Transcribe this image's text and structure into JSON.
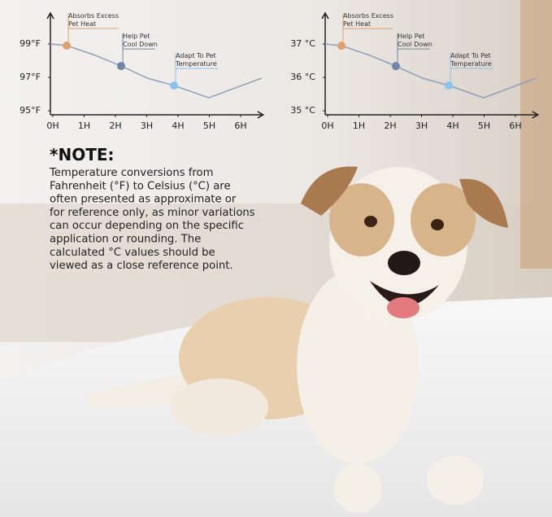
{
  "chart_data": [
    {
      "type": "line",
      "x": [
        0,
        0.52,
        1.43,
        2.26,
        3.1,
        3.95,
        5.06,
        6.75
      ],
      "series": [
        {
          "color": "#8fa3bb",
          "values": [
            99,
            98.9,
            98.32,
            97.68,
            96.95,
            96.51,
            95.78,
            96.95
          ]
        }
      ],
      "xlim": [
        0,
        6.8
      ],
      "ylim": [
        94.76,
        100.85
      ],
      "xticks": [
        {
          "value": 0,
          "label": "0H"
        },
        {
          "value": 1,
          "label": "1H"
        },
        {
          "value": 2,
          "label": "2H"
        },
        {
          "value": 3,
          "label": "3H"
        },
        {
          "value": 4,
          "label": "4H"
        },
        {
          "value": 5,
          "label": "5H"
        },
        {
          "value": 6,
          "label": "6H"
        }
      ],
      "yticks": [
        {
          "value": 95,
          "label": "95°F"
        },
        {
          "value": 97,
          "label": "97°F"
        },
        {
          "value": 99,
          "label": "99°F"
        }
      ],
      "annotations": [
        {
          "x": 0.52,
          "y": 98.9,
          "color": "#e0a070",
          "lines": [
            "Absorbs Excess",
            "Pet Heat"
          ]
        },
        {
          "x": 2.26,
          "y": 97.68,
          "color": "#6f86a8",
          "lines": [
            "Help Pet",
            "Cool Down"
          ]
        },
        {
          "x": 3.95,
          "y": 96.51,
          "color": "#8ec3ee",
          "lines": [
            "Adapt To Pet",
            "Temperature"
          ]
        }
      ]
    },
    {
      "type": "line",
      "x": [
        0,
        0.52,
        1.43,
        2.26,
        3.1,
        3.95,
        5.06,
        6.75
      ],
      "series": [
        {
          "color": "#8fa3bb",
          "values": [
            37,
            36.95,
            36.66,
            36.34,
            35.98,
            35.76,
            35.39,
            35.98
          ]
        }
      ],
      "xlim": [
        0,
        6.8
      ],
      "ylim": [
        34.88,
        37.93
      ],
      "xticks": [
        {
          "value": 0,
          "label": "0H"
        },
        {
          "value": 1,
          "label": "1H"
        },
        {
          "value": 2,
          "label": "2H"
        },
        {
          "value": 3,
          "label": "3H"
        },
        {
          "value": 4,
          "label": "4H"
        },
        {
          "value": 5,
          "label": "5H"
        },
        {
          "value": 6,
          "label": "6H"
        }
      ],
      "yticks": [
        {
          "value": 35,
          "label": "35 °C"
        },
        {
          "value": 36,
          "label": "36 °C"
        },
        {
          "value": 37,
          "label": "37 °C"
        }
      ],
      "annotations": [
        {
          "x": 0.52,
          "y": 36.95,
          "color": "#e0a070",
          "lines": [
            "Absorbs Excess",
            "Pet Heat"
          ]
        },
        {
          "x": 2.26,
          "y": 36.34,
          "color": "#6f86a8",
          "lines": [
            "Help Pet",
            "Cool Down"
          ]
        },
        {
          "x": 3.95,
          "y": 35.76,
          "color": "#8ec3ee",
          "lines": [
            "Adapt To Pet",
            "Temperature"
          ]
        }
      ]
    }
  ],
  "note": {
    "title": "*NOTE:",
    "lines": [
      "Temperature conversions from",
      "Fahrenheit (°F) to Celsius (°C) are",
      "often presented as approximate or",
      "for reference only, as minor variations",
      "can occur depending on the specific",
      "application or rounding. The",
      "calculated °C values should be",
      "viewed as a close reference point."
    ]
  }
}
